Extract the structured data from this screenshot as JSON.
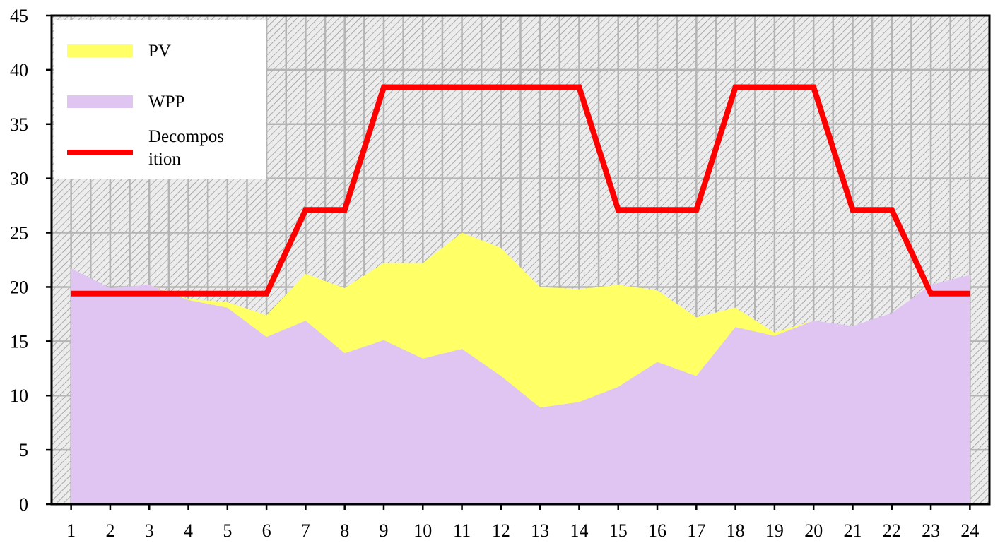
{
  "chart_data": {
    "type": "area",
    "x": [
      1,
      2,
      3,
      4,
      5,
      6,
      7,
      8,
      9,
      10,
      11,
      12,
      13,
      14,
      15,
      16,
      17,
      18,
      19,
      20,
      21,
      22,
      23,
      24
    ],
    "xlim": [
      0.5,
      24.5
    ],
    "ylim": [
      0,
      45
    ],
    "yticks": [
      0,
      5,
      10,
      15,
      20,
      25,
      30,
      35,
      40,
      45
    ],
    "grid": true,
    "stacked": true,
    "legend_position": "top-left",
    "series": [
      {
        "name": "WPP",
        "kind": "area",
        "color": "#e0c4f2",
        "values": [
          21.7,
          19.9,
          20.2,
          18.8,
          18.1,
          15.4,
          16.9,
          13.9,
          15.1,
          13.4,
          14.3,
          11.8,
          8.9,
          9.4,
          10.8,
          13.1,
          11.8,
          16.3,
          15.5,
          16.9,
          16.4,
          17.6,
          20.2,
          21.1
        ]
      },
      {
        "name": "PV",
        "kind": "area",
        "color": "#ffff66",
        "values": [
          0,
          0,
          0,
          0.1,
          0.5,
          2.0,
          4.3,
          6.0,
          7.1,
          8.8,
          10.7,
          11.8,
          11.1,
          10.4,
          9.4,
          6.6,
          5.4,
          1.8,
          0.3,
          0,
          0,
          0,
          0,
          0
        ]
      },
      {
        "name": "Decomposition",
        "legend_lines": [
          "Decompos",
          "ition"
        ],
        "kind": "line",
        "color": "#ff0000",
        "values": [
          19.4,
          19.4,
          19.4,
          19.4,
          19.4,
          19.4,
          27.1,
          27.1,
          38.4,
          38.4,
          38.4,
          38.4,
          38.4,
          38.4,
          27.1,
          27.1,
          27.1,
          38.4,
          38.4,
          38.4,
          27.1,
          27.1,
          19.4,
          19.4
        ]
      }
    ]
  }
}
